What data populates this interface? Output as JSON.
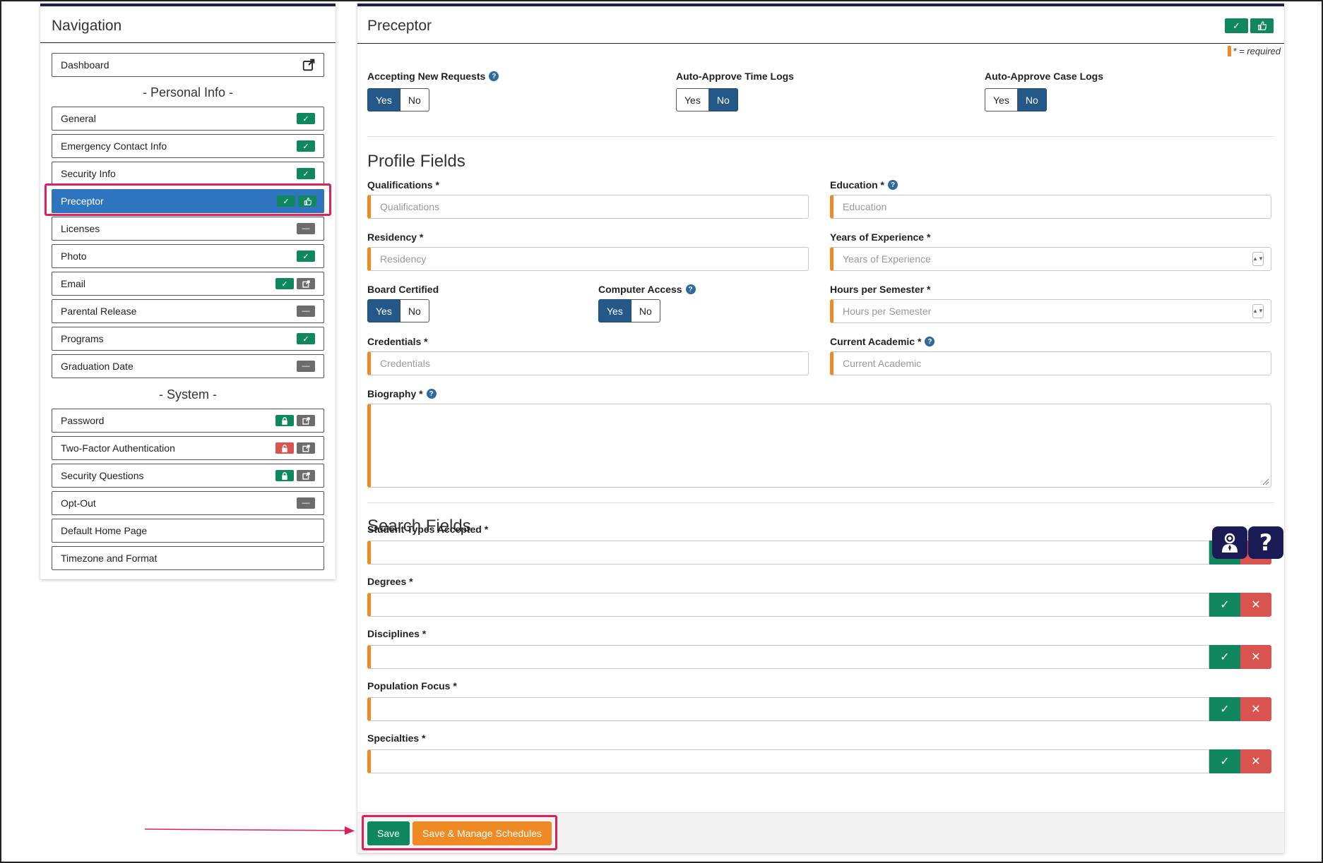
{
  "nav": {
    "title": "Navigation",
    "dashboard": "Dashboard",
    "personal_section": "- Personal Info -",
    "personal_items": [
      {
        "label": "General",
        "status": "check"
      },
      {
        "label": "Emergency Contact Info",
        "status": "check"
      },
      {
        "label": "Security Info",
        "status": "check"
      },
      {
        "label": "Preceptor",
        "status": "check-thumb",
        "active": true
      },
      {
        "label": "Licenses",
        "status": "minus"
      },
      {
        "label": "Photo",
        "status": "check"
      },
      {
        "label": "Email",
        "status": "check-external"
      },
      {
        "label": "Parental Release",
        "status": "minus"
      },
      {
        "label": "Programs",
        "status": "check"
      },
      {
        "label": "Graduation Date",
        "status": "minus"
      }
    ],
    "system_section": "- System -",
    "system_items": [
      {
        "label": "Password",
        "status": "lock-external"
      },
      {
        "label": "Two-Factor Authentication",
        "status": "unlock-external"
      },
      {
        "label": "Security Questions",
        "status": "lock-external"
      },
      {
        "label": "Opt-Out",
        "status": "minus"
      },
      {
        "label": "Default Home Page",
        "status": "none"
      },
      {
        "label": "Timezone and Format",
        "status": "none"
      }
    ]
  },
  "main": {
    "title": "Preceptor",
    "required_note": "* = required",
    "toggles": {
      "accepting": {
        "label": "Accepting New Requests",
        "yes": "Yes",
        "no": "No",
        "selected": "Yes"
      },
      "time_logs": {
        "label": "Auto-Approve Time Logs",
        "yes": "Yes",
        "no": "No",
        "selected": "No"
      },
      "case_logs": {
        "label": "Auto-Approve Case Logs",
        "yes": "Yes",
        "no": "No",
        "selected": "No"
      },
      "board": {
        "label": "Board Certified",
        "yes": "Yes",
        "no": "No",
        "selected": "Yes"
      },
      "computer": {
        "label": "Computer Access",
        "yes": "Yes",
        "no": "No",
        "selected": "Yes"
      }
    },
    "profile_title": "Profile Fields",
    "fields": {
      "qualifications": {
        "label": "Qualifications *",
        "placeholder": "Qualifications"
      },
      "education": {
        "label": "Education *",
        "placeholder": "Education"
      },
      "residency": {
        "label": "Residency *",
        "placeholder": "Residency"
      },
      "years": {
        "label": "Years of Experience *",
        "placeholder": "Years of Experience"
      },
      "hours": {
        "label": "Hours per Semester *",
        "placeholder": "Hours per Semester"
      },
      "credentials": {
        "label": "Credentials *",
        "placeholder": "Credentials"
      },
      "academic": {
        "label": "Current Academic *",
        "placeholder": "Current Academic"
      },
      "biography": {
        "label": "Biography *"
      }
    },
    "search_title": "Search Fields",
    "search_fields": [
      {
        "label": "Student Types Accepted *"
      },
      {
        "label": "Degrees *"
      },
      {
        "label": "Disciplines *"
      },
      {
        "label": "Population Focus *"
      },
      {
        "label": "Specialties *"
      }
    ],
    "save_label": "Save",
    "save_schedules_label": "Save & Manage Schedules"
  },
  "colors": {
    "primary_blue": "#2f74bf",
    "toggle_on": "#245889",
    "success": "#11875f",
    "danger": "#d9534f",
    "warning": "#f08a24",
    "nav_dark": "#1c1f4a",
    "highlight": "#e0205a"
  }
}
